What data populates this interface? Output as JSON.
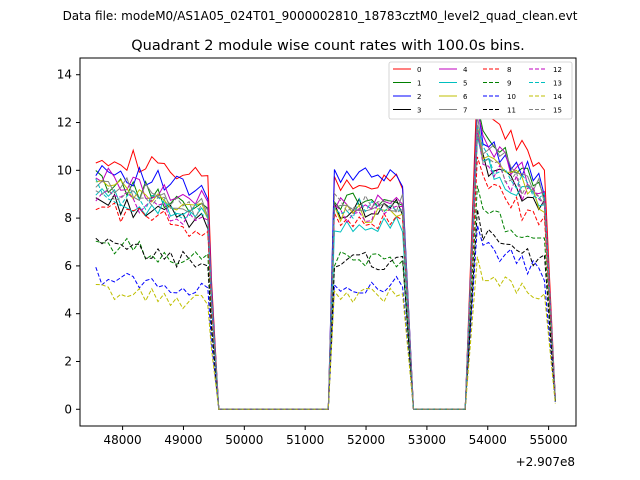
{
  "chart_data": {
    "type": "line",
    "suptitle": "Data file: modeM0/AS1A05_024T01_9000002810_18783cztM0_level2_quad_clean.evt",
    "title": "Quadrant 2 module wise count rates with 100.0s bins.",
    "xlabel": "",
    "ylabel": "",
    "x_offset_label": "+2.907e8",
    "xlim": [
      47300,
      55450
    ],
    "ylim": [
      -0.7,
      14.7
    ],
    "x_ticks": [
      48000,
      49000,
      50000,
      51000,
      52000,
      53000,
      54000,
      55000
    ],
    "x_tick_labels": [
      "48000",
      "49000",
      "50000",
      "51000",
      "52000",
      "53000",
      "54000",
      "55000"
    ],
    "y_ticks": [
      0,
      2,
      4,
      6,
      8,
      10,
      12,
      14
    ],
    "y_tick_labels": [
      "0",
      "2",
      "4",
      "6",
      "8",
      "10",
      "12",
      "14"
    ],
    "legend_position": "top-right",
    "segments": [
      {
        "x_start": 47560,
        "n": 19,
        "ramp_down_end": 49580
      },
      {
        "x_start": 51480,
        "n": 12,
        "ramp_up_start": 51380,
        "ramp_down_end": 52780
      },
      {
        "x_start": 53830,
        "n": 13,
        "ramp_up_start": 53630,
        "ramp_down_end": 55110
      }
    ],
    "zero_ranges": [
      [
        49580,
        51380
      ],
      [
        52780,
        53630
      ]
    ],
    "series": [
      {
        "name": "0",
        "color": "#ff0000",
        "dash": "solid",
        "levels": [
          10.8,
          9.4,
          12.6
        ],
        "end": 9.6
      },
      {
        "name": "1",
        "color": "#008000",
        "dash": "solid",
        "levels": [
          9.6,
          8.7,
          11.6
        ],
        "end": 8.8
      },
      {
        "name": "2",
        "color": "#0000ff",
        "dash": "solid",
        "levels": [
          10.2,
          9.7,
          11.6
        ],
        "end": 8.6
      },
      {
        "name": "3",
        "color": "#000000",
        "dash": "solid",
        "levels": [
          8.8,
          8.4,
          10.4
        ],
        "end": 8.2
      },
      {
        "name": "4",
        "color": "#bf00bf",
        "dash": "solid",
        "levels": [
          9.8,
          8.6,
          11.4
        ],
        "end": 9.2
      },
      {
        "name": "5",
        "color": "#00bfbf",
        "dash": "solid",
        "levels": [
          9.0,
          7.8,
          10.4
        ],
        "end": 7.9
      },
      {
        "name": "6",
        "color": "#bfbf00",
        "dash": "solid",
        "levels": [
          9.4,
          8.2,
          10.8
        ],
        "end": 8.8
      },
      {
        "name": "7",
        "color": "#808080",
        "dash": "solid",
        "levels": [
          9.6,
          8.6,
          11.2
        ],
        "end": 9.0
      },
      {
        "name": "8",
        "color": "#ff0000",
        "dash": "dashed",
        "levels": [
          8.5,
          7.9,
          9.6
        ],
        "end": 8.1
      },
      {
        "name": "9",
        "color": "#008000",
        "dash": "dashed",
        "levels": [
          7.0,
          6.3,
          8.5
        ],
        "end": 6.6
      },
      {
        "name": "10",
        "color": "#0000ff",
        "dash": "dashed",
        "levels": [
          5.6,
          5.2,
          7.0
        ],
        "end": 5.6
      },
      {
        "name": "11",
        "color": "#000000",
        "dash": "dashed",
        "levels": [
          6.9,
          6.2,
          7.6
        ],
        "end": 6.7
      },
      {
        "name": "12",
        "color": "#bf00bf",
        "dash": "dashed",
        "levels": [
          9.0,
          8.2,
          10.6
        ],
        "end": 8.6
      },
      {
        "name": "13",
        "color": "#00bfbf",
        "dash": "dashed",
        "levels": [
          9.2,
          8.4,
          10.8
        ],
        "end": 8.8
      },
      {
        "name": "14",
        "color": "#bfbf00",
        "dash": "dashed",
        "levels": [
          5.0,
          4.8,
          5.8
        ],
        "end": 4.9
      },
      {
        "name": "15",
        "color": "#808080",
        "dash": "dashed",
        "levels": [
          9.2,
          8.6,
          10.8
        ],
        "end": 8.9
      }
    ]
  }
}
